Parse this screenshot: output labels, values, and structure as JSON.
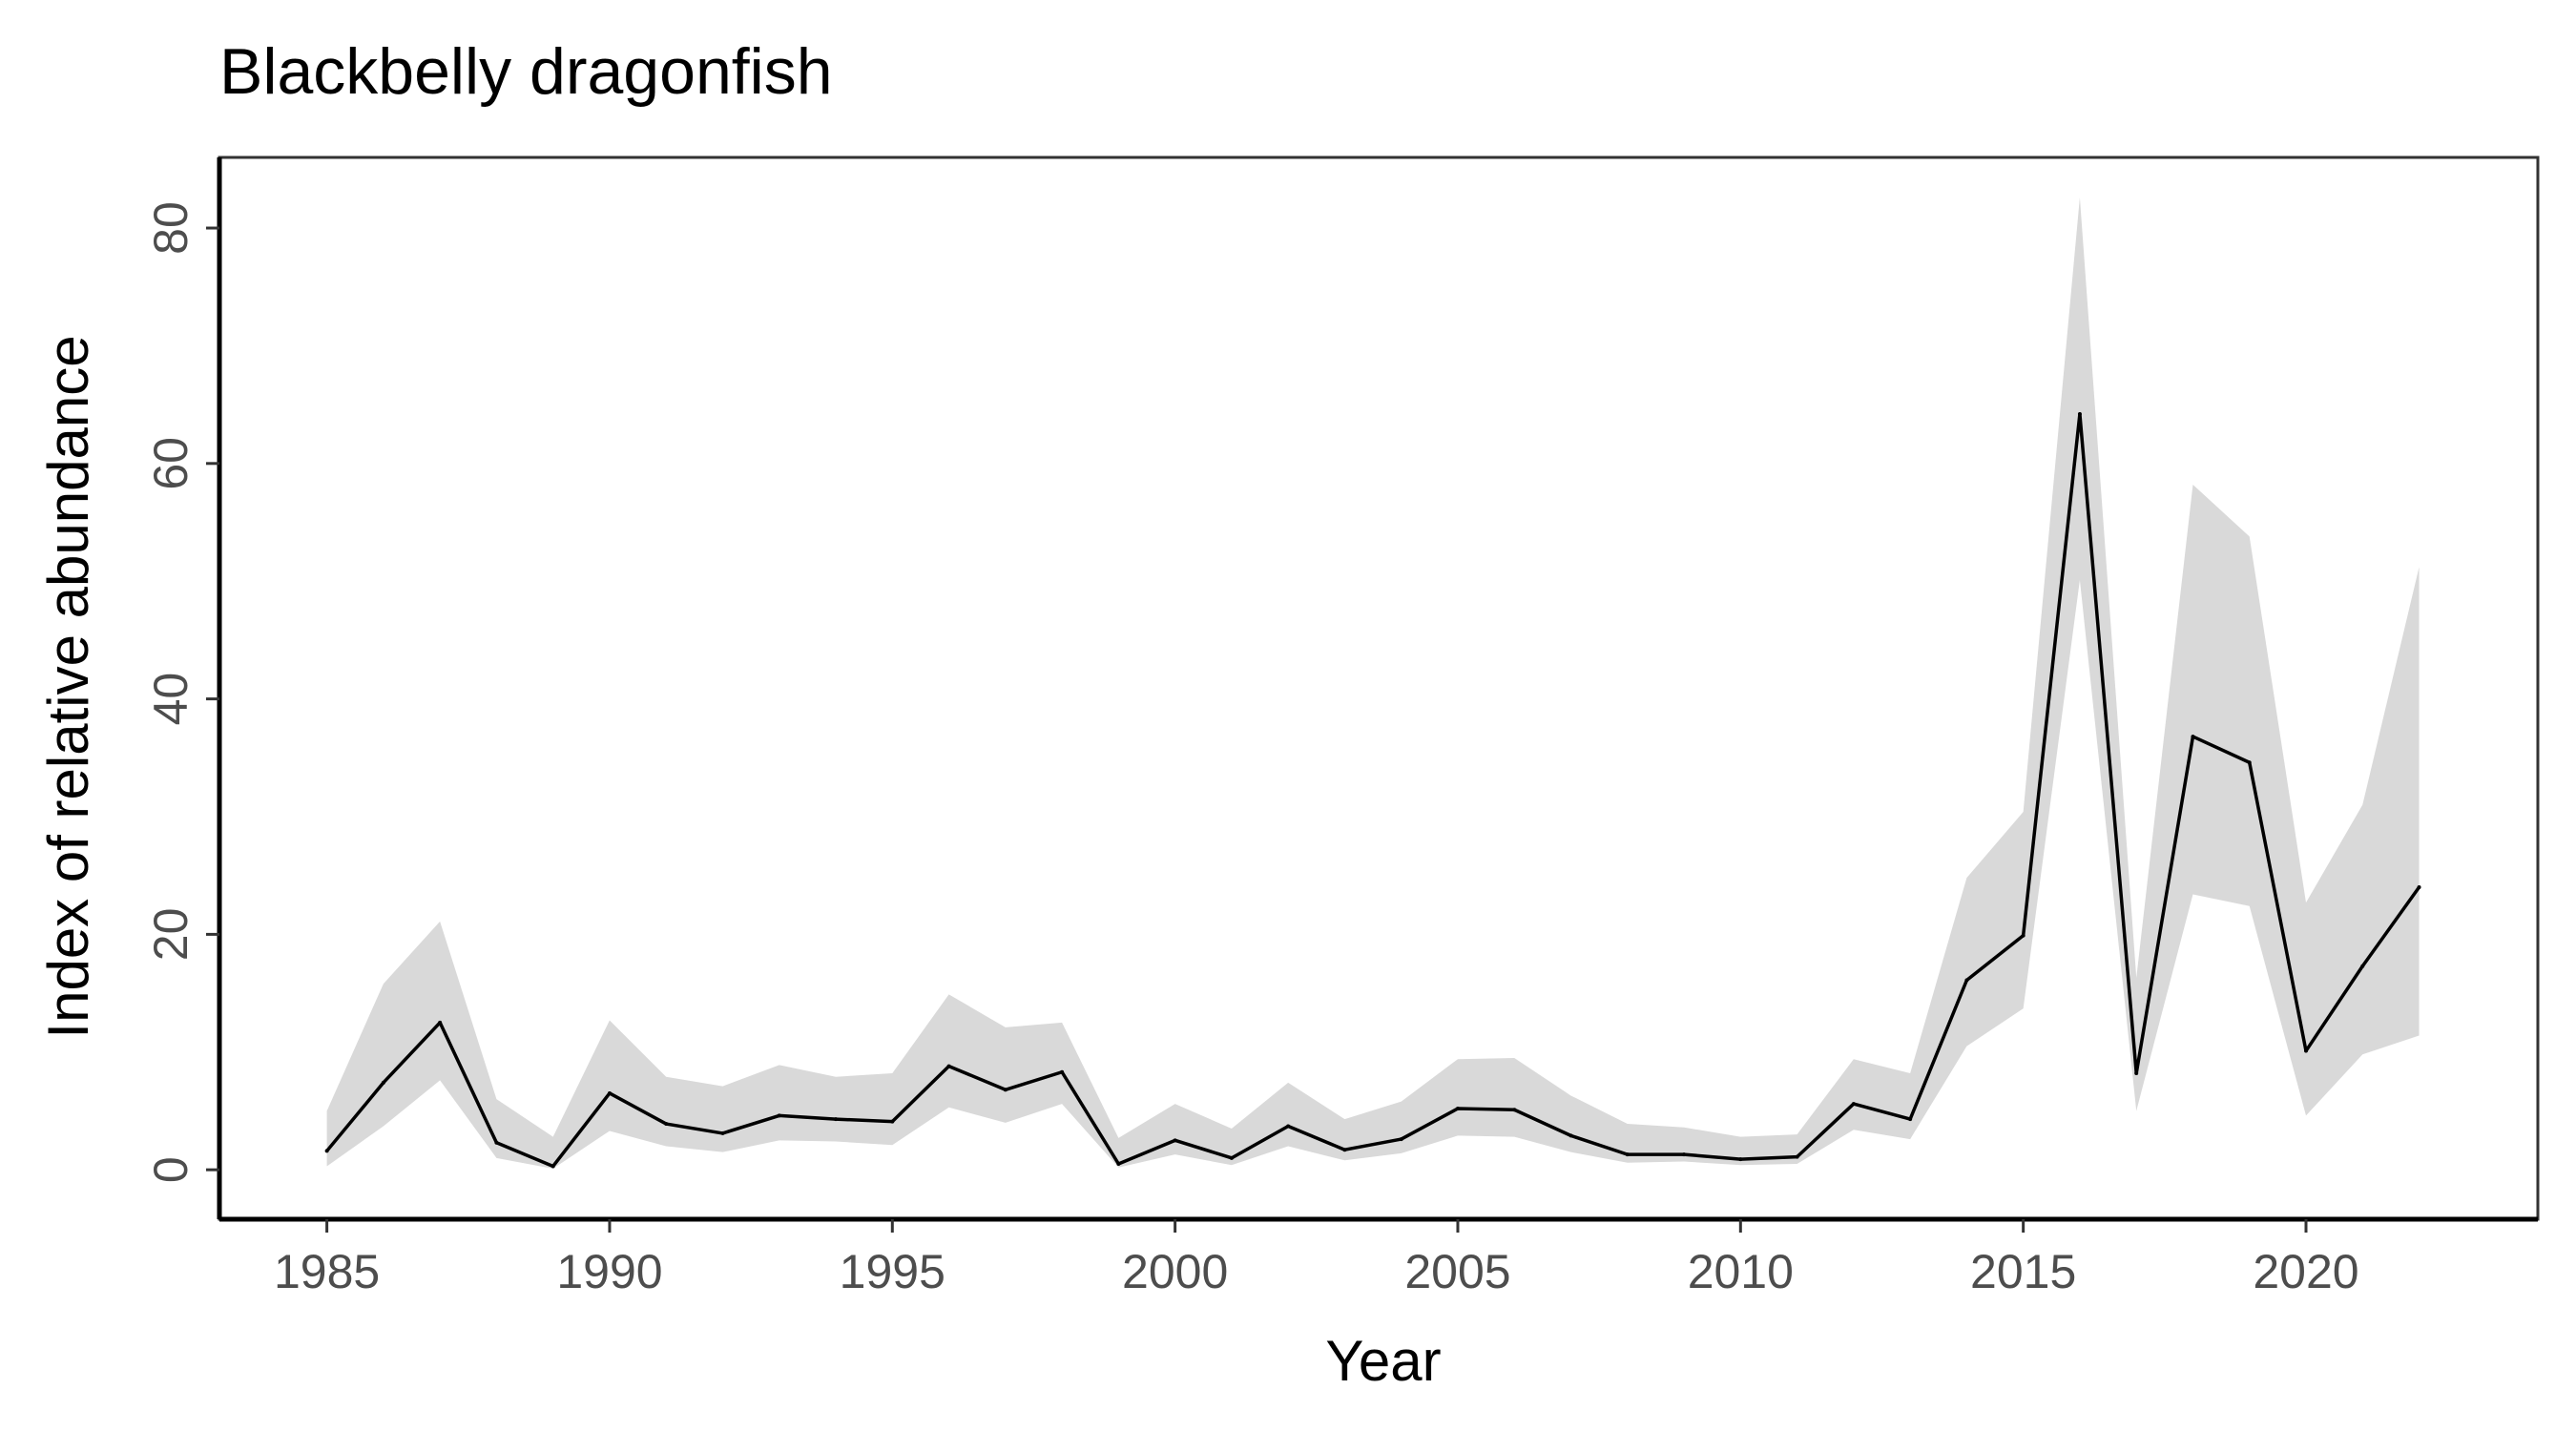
{
  "chart_data": {
    "type": "line",
    "title": "Blackbelly dragonfish",
    "xlabel": "Year",
    "ylabel": "Index of relative abundance",
    "xlim": [
      1983.1,
      2024.1
    ],
    "ylim": [
      -4.2,
      86
    ],
    "x_ticks": [
      1985,
      1990,
      1995,
      2000,
      2005,
      2010,
      2015,
      2020
    ],
    "y_ticks": [
      0,
      20,
      40,
      60,
      80
    ],
    "grid": false,
    "legend": "none",
    "colors": {
      "line": "#000000",
      "ribbon": "#d9d9d9",
      "tick_text": "#4d4d4d"
    },
    "series": [
      {
        "x": [
          1985,
          1986,
          1987,
          1988,
          1989,
          1990,
          1991,
          1992,
          1993,
          1994,
          1995,
          1996,
          1997,
          1998,
          1999,
          2000,
          2001,
          2002,
          2003,
          2004,
          2005,
          2006,
          2007,
          2008,
          2009,
          2010,
          2011,
          2012,
          2013,
          2014,
          2015,
          2016,
          2017,
          2018,
          2019,
          2020,
          2021,
          2022
        ],
        "y": [
          1.6,
          7.4,
          12.5,
          2.3,
          0.3,
          6.5,
          3.9,
          3.1,
          4.6,
          4.3,
          4.1,
          8.8,
          6.8,
          8.3,
          0.5,
          2.5,
          1.0,
          3.7,
          1.7,
          2.6,
          5.2,
          5.1,
          2.9,
          1.3,
          1.3,
          0.9,
          1.1,
          5.6,
          4.3,
          16.1,
          19.9,
          64.2,
          8.2,
          36.8,
          34.6,
          10.1,
          17.3,
          24.0
        ],
        "lower": [
          0.3,
          3.7,
          7.6,
          1.0,
          0.1,
          3.3,
          2.0,
          1.5,
          2.5,
          2.4,
          2.1,
          5.3,
          4.0,
          5.6,
          0.2,
          1.3,
          0.4,
          2.0,
          0.8,
          1.4,
          2.9,
          2.8,
          1.5,
          0.6,
          0.7,
          0.4,
          0.5,
          3.4,
          2.6,
          10.5,
          13.7,
          50.1,
          5.0,
          23.4,
          22.4,
          4.6,
          9.8,
          11.4
        ],
        "upper": [
          5.0,
          15.8,
          21.1,
          6.0,
          2.8,
          12.7,
          7.9,
          7.1,
          8.9,
          7.9,
          8.2,
          14.9,
          12.1,
          12.5,
          2.7,
          5.6,
          3.5,
          7.4,
          4.3,
          5.8,
          9.4,
          9.5,
          6.3,
          3.9,
          3.6,
          2.8,
          3.0,
          9.4,
          8.2,
          24.8,
          30.4,
          82.6,
          16.3,
          58.2,
          53.8,
          22.7,
          31.0,
          51.2
        ]
      }
    ]
  }
}
